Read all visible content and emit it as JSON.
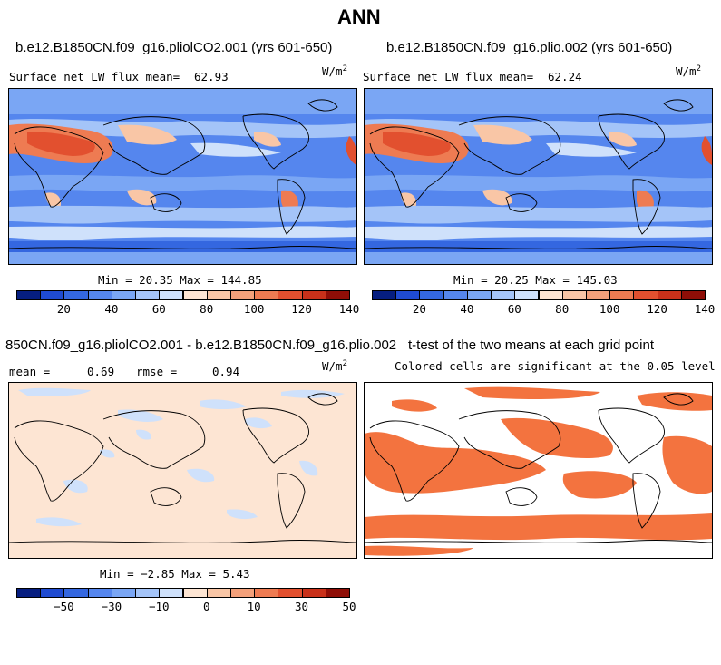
{
  "page_title": "ANN",
  "units_base": "W/m",
  "units_exp": "2",
  "panels": {
    "top_left": {
      "title": "b.e12.B1850CN.f09_g16.pliolCO2.001 (yrs 601-650)",
      "subtitle": "Surface net LW flux mean=",
      "mean": "62.93",
      "minmax": "Min =  20.35 Max = 144.85"
    },
    "top_right": {
      "title": "b.e12.B1850CN.f09_g16.plio.002 (yrs 601-650)",
      "subtitle": "Surface net LW flux mean=",
      "mean": "62.24",
      "minmax": "Min =  20.25 Max = 145.03"
    },
    "bottom_left": {
      "title": "850CN.f09_g16.pliolCO2.001 - b.e12.B1850CN.f09_g16.plio.002",
      "mean_label": "mean =",
      "mean": "0.69",
      "rmse_label": "rmse =",
      "rmse": "0.94",
      "minmax": "Min =  −2.85 Max =   5.43"
    },
    "bottom_right": {
      "title": "t-test of the two means at each grid point",
      "subtitle": "Colored cells are significant at the 0.05 level"
    }
  },
  "colorbars": {
    "absolute": {
      "colors": [
        "#061e80",
        "#1f4bd1",
        "#3467e0",
        "#5586ee",
        "#7aa6f4",
        "#a4c4f8",
        "#cfe1fb",
        "#fde5d3",
        "#f9c6a6",
        "#f3a07a",
        "#ee7b52",
        "#e2502f",
        "#c9311a",
        "#8f0e07"
      ],
      "ticks": [
        "20",
        "40",
        "60",
        "80",
        "100",
        "120",
        "140"
      ]
    },
    "difference": {
      "colors": [
        "#061e80",
        "#1f4bd1",
        "#3467e0",
        "#5586ee",
        "#7aa6f4",
        "#a4c4f8",
        "#cfe1fb",
        "#fde5d3",
        "#f9c6a6",
        "#f3a07a",
        "#ee7b52",
        "#e2502f",
        "#c9311a",
        "#8f0e07"
      ],
      "ticks": [
        "−50",
        "−30",
        "−10",
        "0",
        "10",
        "30",
        "50"
      ]
    }
  },
  "chart_data": [
    {
      "type": "heatmap",
      "title": "b.e12.B1850CN.f09_g16.pliolCO2.001 (yrs 601-650)",
      "variable": "Surface net LW flux",
      "units": "W/m2",
      "mean": 62.93,
      "min": 20.35,
      "max": 144.85,
      "contour_levels": [
        10,
        20,
        30,
        40,
        50,
        60,
        70,
        80,
        90,
        100,
        110,
        120,
        130,
        140,
        150
      ]
    },
    {
      "type": "heatmap",
      "title": "b.e12.B1850CN.f09_g16.plio.002 (yrs 601-650)",
      "variable": "Surface net LW flux",
      "units": "W/m2",
      "mean": 62.24,
      "min": 20.25,
      "max": 145.03,
      "contour_levels": [
        10,
        20,
        30,
        40,
        50,
        60,
        70,
        80,
        90,
        100,
        110,
        120,
        130,
        140,
        150
      ]
    },
    {
      "type": "heatmap",
      "title": "pliolCO2.001 - plio.002",
      "units": "W/m2",
      "mean": 0.69,
      "rmse": 0.94,
      "min": -2.85,
      "max": 5.43,
      "contour_levels": [
        -60,
        -50,
        -40,
        -30,
        -20,
        -10,
        -5,
        0,
        5,
        10,
        20,
        30,
        40,
        50,
        60
      ]
    },
    {
      "type": "heatmap",
      "title": "t-test of the two means at each grid point",
      "note": "Colored cells are significant at the 0.05 level",
      "significance_level": 0.05
    }
  ]
}
